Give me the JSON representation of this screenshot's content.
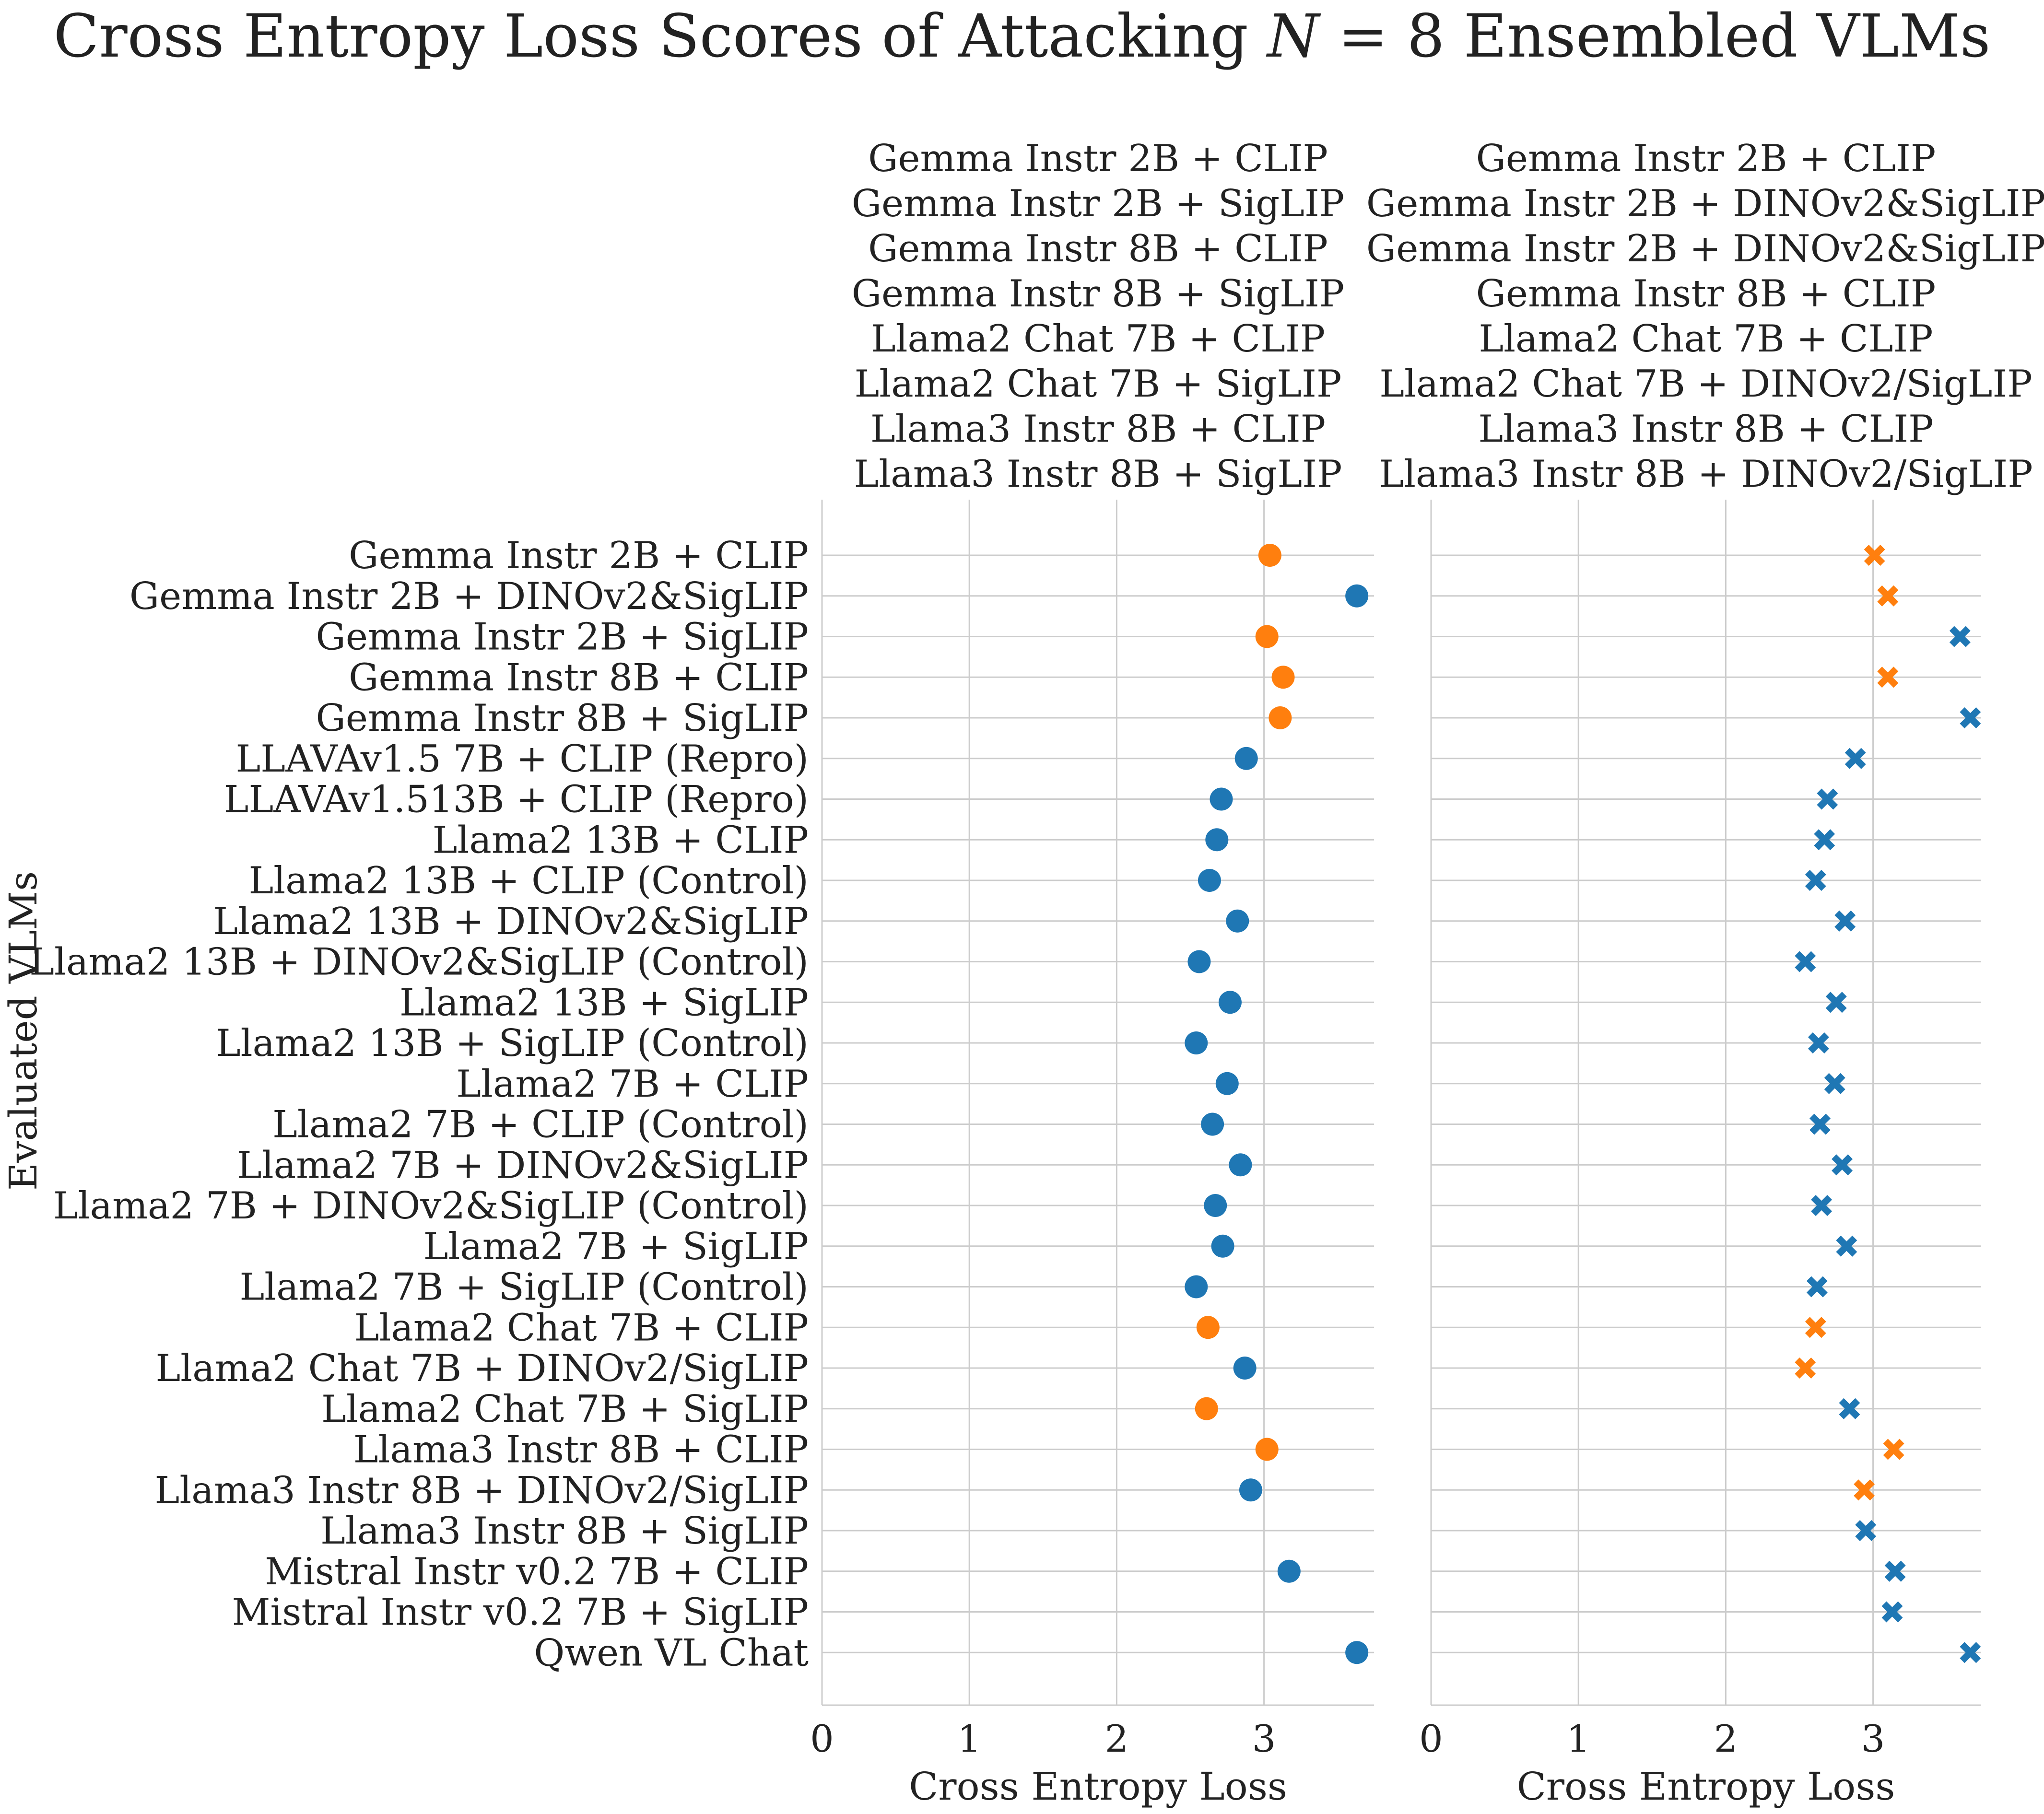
{
  "chart_data": {
    "type": "scatter",
    "title": "Cross Entropy Loss Scores of Attacking N = 8 Ensembled VLMs",
    "title_parts": {
      "before": "Cross Entropy Loss Scores of Attacking ",
      "var": "N",
      "after": " = 8 Ensembled VLMs"
    },
    "ylabel": "Evaluated VLMs",
    "xlim": [
      0,
      3.7
    ],
    "grid": true,
    "colors": {
      "attacked": "#ff7f0e",
      "other": "#1f77b4"
    },
    "categories": [
      "Gemma Instr 2B + CLIP",
      "Gemma Instr 2B + DINOv2&SigLIP",
      "Gemma Instr 2B + SigLIP",
      "Gemma Instr 8B + CLIP",
      "Gemma Instr 8B + SigLIP",
      "LLAVAv1.5 7B + CLIP (Repro)",
      "LLAVAv1.513B + CLIP (Repro)",
      "Llama2 13B + CLIP",
      "Llama2 13B + CLIP (Control)",
      "Llama2 13B + DINOv2&SigLIP",
      "Llama2 13B + DINOv2&SigLIP (Control)",
      "Llama2 13B + SigLIP",
      "Llama2 13B + SigLIP (Control)",
      "Llama2 7B + CLIP",
      "Llama2 7B + CLIP (Control)",
      "Llama2 7B + DINOv2&SigLIP",
      "Llama2 7B + DINOv2&SigLIP (Control)",
      "Llama2 7B + SigLIP",
      "Llama2 7B + SigLIP (Control)",
      "Llama2 Chat 7B + CLIP",
      "Llama2 Chat 7B + DINOv2/SigLIP",
      "Llama2 Chat 7B + SigLIP",
      "Llama3 Instr 8B + CLIP",
      "Llama3 Instr 8B + DINOv2/SigLIP",
      "Llama3 Instr 8B + SigLIP",
      "Mistral Instr v0.2 7B + CLIP",
      "Mistral Instr v0.2 7B + SigLIP",
      "Qwen VL Chat"
    ],
    "panels": [
      {
        "title_lines": [
          "Gemma Instr 2B + CLIP",
          "Gemma Instr 2B + SigLIP",
          "Gemma Instr 8B + CLIP",
          "Gemma Instr 8B + SigLIP",
          "Llama2 Chat 7B + CLIP",
          "Llama2 Chat 7B + SigLIP",
          "Llama3 Instr 8B + CLIP",
          "Llama3 Instr 8B + SigLIP"
        ],
        "xlabel": "Cross Entropy Loss",
        "xticks": [
          "0",
          "1",
          "2",
          "3"
        ],
        "marker": "circle",
        "values": [
          3.04,
          3.63,
          3.02,
          3.13,
          3.11,
          2.88,
          2.71,
          2.68,
          2.63,
          2.82,
          2.56,
          2.77,
          2.54,
          2.75,
          2.65,
          2.84,
          2.67,
          2.72,
          2.54,
          2.62,
          2.87,
          2.61,
          3.02,
          2.91,
          null,
          3.17,
          null,
          3.63
        ],
        "attacked": [
          true,
          false,
          true,
          true,
          true,
          false,
          false,
          false,
          false,
          false,
          false,
          false,
          false,
          false,
          false,
          false,
          false,
          false,
          false,
          true,
          false,
          true,
          true,
          false,
          false,
          false,
          false,
          false
        ]
      },
      {
        "title_lines": [
          "Gemma Instr 2B + CLIP",
          "Gemma Instr 2B + DINOv2&SigLIP",
          "Gemma Instr 2B + DINOv2&SigLIP",
          "Gemma Instr 8B + CLIP",
          "Llama2 Chat 7B + CLIP",
          "Llama2 Chat 7B + DINOv2/SigLIP",
          "Llama3 Instr 8B + CLIP",
          "Llama3 Instr 8B + DINOv2/SigLIP"
        ],
        "xlabel": "Cross Entropy Loss",
        "xticks": [
          "0",
          "1",
          "2",
          "3"
        ],
        "marker": "x",
        "values": [
          3.01,
          3.1,
          3.59,
          3.1,
          3.66,
          2.88,
          2.69,
          2.67,
          2.61,
          2.81,
          2.54,
          2.75,
          2.63,
          2.74,
          2.64,
          2.79,
          2.65,
          2.82,
          2.62,
          2.61,
          2.54,
          2.84,
          3.14,
          2.94,
          2.95,
          3.15,
          3.13,
          3.66
        ],
        "attacked": [
          true,
          true,
          false,
          true,
          false,
          false,
          false,
          false,
          false,
          false,
          false,
          false,
          false,
          false,
          false,
          false,
          false,
          false,
          false,
          true,
          true,
          false,
          true,
          true,
          false,
          false,
          false,
          false
        ]
      }
    ]
  }
}
